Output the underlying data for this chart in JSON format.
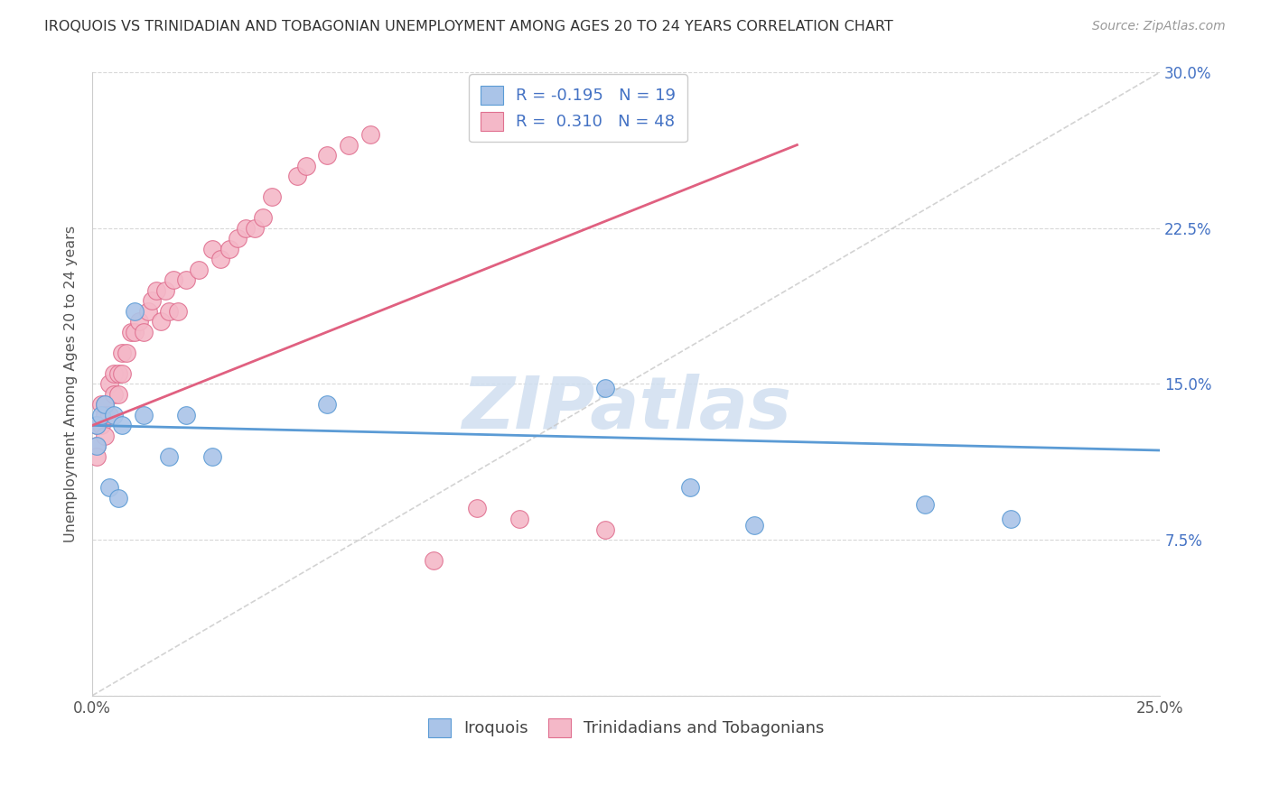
{
  "title": "IROQUOIS VS TRINIDADIAN AND TOBAGONIAN UNEMPLOYMENT AMONG AGES 20 TO 24 YEARS CORRELATION CHART",
  "source": "Source: ZipAtlas.com",
  "ylabel": "Unemployment Among Ages 20 to 24 years",
  "xlim": [
    0.0,
    0.25
  ],
  "ylim": [
    0.0,
    0.3
  ],
  "xticks": [
    0.0,
    0.05,
    0.1,
    0.15,
    0.2,
    0.25
  ],
  "xticklabels": [
    "0.0%",
    "",
    "",
    "",
    "",
    "25.0%"
  ],
  "yticks": [
    0.0,
    0.075,
    0.15,
    0.225,
    0.3
  ],
  "right_yticklabels": [
    "",
    "7.5%",
    "15.0%",
    "22.5%",
    "30.0%"
  ],
  "iroquois_x": [
    0.001,
    0.001,
    0.002,
    0.003,
    0.004,
    0.005,
    0.006,
    0.007,
    0.01,
    0.012,
    0.018,
    0.022,
    0.028,
    0.055,
    0.12,
    0.14,
    0.155,
    0.195,
    0.215
  ],
  "iroquois_y": [
    0.13,
    0.12,
    0.135,
    0.14,
    0.1,
    0.135,
    0.095,
    0.13,
    0.185,
    0.135,
    0.115,
    0.135,
    0.115,
    0.14,
    0.148,
    0.1,
    0.082,
    0.092,
    0.085
  ],
  "trinidadian_x": [
    0.001,
    0.001,
    0.001,
    0.002,
    0.002,
    0.003,
    0.003,
    0.003,
    0.004,
    0.004,
    0.005,
    0.005,
    0.006,
    0.006,
    0.007,
    0.007,
    0.008,
    0.009,
    0.01,
    0.011,
    0.012,
    0.013,
    0.014,
    0.015,
    0.016,
    0.017,
    0.018,
    0.019,
    0.02,
    0.022,
    0.025,
    0.028,
    0.03,
    0.032,
    0.034,
    0.036,
    0.038,
    0.04,
    0.042,
    0.048,
    0.05,
    0.055,
    0.06,
    0.065,
    0.08,
    0.09,
    0.1,
    0.12
  ],
  "trinidadian_y": [
    0.13,
    0.12,
    0.115,
    0.14,
    0.13,
    0.14,
    0.135,
    0.125,
    0.15,
    0.135,
    0.155,
    0.145,
    0.155,
    0.145,
    0.165,
    0.155,
    0.165,
    0.175,
    0.175,
    0.18,
    0.175,
    0.185,
    0.19,
    0.195,
    0.18,
    0.195,
    0.185,
    0.2,
    0.185,
    0.2,
    0.205,
    0.215,
    0.21,
    0.215,
    0.22,
    0.225,
    0.225,
    0.23,
    0.24,
    0.25,
    0.255,
    0.26,
    0.265,
    0.27,
    0.065,
    0.09,
    0.085,
    0.08
  ],
  "iroquois_color": "#aac4e8",
  "iroquois_edge_color": "#5b9bd5",
  "trinidadian_color": "#f4b8c8",
  "trinidadian_edge_color": "#e07090",
  "iroquois_line_color": "#5b9bd5",
  "trinidadian_line_color": "#e06080",
  "dashed_line_color": "#c8c8c8",
  "iroquois_R": "-0.195",
  "iroquois_N": "19",
  "trinidadian_R": "0.310",
  "trinidadian_N": "48",
  "background_color": "#ffffff",
  "grid_color": "#d8d8d8",
  "watermark_text": "ZIPatlas",
  "watermark_color": "#d0dff0",
  "right_tick_color": "#4472c4",
  "title_color": "#333333",
  "source_color": "#999999",
  "ylabel_color": "#555555"
}
